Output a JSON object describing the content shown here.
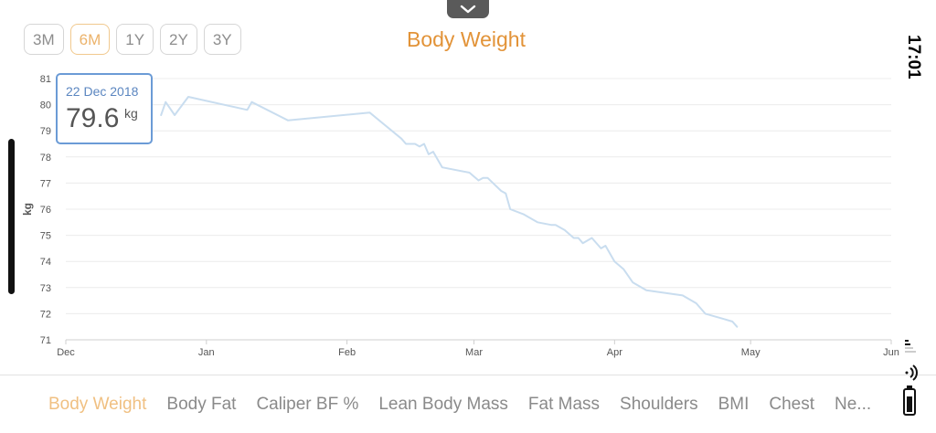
{
  "header": {
    "title": "Body Weight",
    "time_ranges": [
      "3M",
      "6M",
      "1Y",
      "2Y",
      "3Y"
    ],
    "selected_range": "6M"
  },
  "status_bar": {
    "time": "17:01"
  },
  "tooltip": {
    "date": "22 Dec 2018",
    "value": "79.6",
    "unit": "kg"
  },
  "tabs": [
    {
      "label": "Body Weight",
      "active": true
    },
    {
      "label": "Body Fat"
    },
    {
      "label": "Caliper BF %"
    },
    {
      "label": "Lean Body Mass"
    },
    {
      "label": "Fat Mass"
    },
    {
      "label": "Shoulders"
    },
    {
      "label": "BMI"
    },
    {
      "label": "Chest"
    },
    {
      "label": "Ne..."
    }
  ],
  "colors": {
    "accent": "#e29338",
    "line": "#c9ddef",
    "tooltip_border": "#6b9bd6"
  },
  "chart_data": {
    "type": "line",
    "title": "Body Weight",
    "ylabel": "kg",
    "xlabel": "",
    "ylim": [
      71,
      81
    ],
    "yticks": [
      71,
      72,
      73,
      74,
      75,
      76,
      77,
      78,
      79,
      80,
      81
    ],
    "xlim": [
      "2018-12-01",
      "2019-06-01"
    ],
    "xticks": [
      {
        "label": "Dec",
        "date": "2018-12-01"
      },
      {
        "label": "Jan",
        "date": "2019-01-01"
      },
      {
        "label": "Feb",
        "date": "2019-02-01"
      },
      {
        "label": "Mar",
        "date": "2019-03-01"
      },
      {
        "label": "Apr",
        "date": "2019-04-01"
      },
      {
        "label": "May",
        "date": "2019-05-01"
      },
      {
        "label": "Jun",
        "date": "2019-06-01"
      }
    ],
    "grid": true,
    "series": [
      {
        "points": [
          [
            "2018-12-22",
            79.6
          ],
          [
            "2018-12-23",
            80.1
          ],
          [
            "2018-12-25",
            79.6
          ],
          [
            "2018-12-28",
            80.3
          ],
          [
            "2019-01-10",
            79.8
          ],
          [
            "2019-01-11",
            80.1
          ],
          [
            "2019-01-19",
            79.4
          ],
          [
            "2019-02-06",
            79.7
          ],
          [
            "2019-02-13",
            78.7
          ],
          [
            "2019-02-14",
            78.5
          ],
          [
            "2019-02-16",
            78.5
          ],
          [
            "2019-02-17",
            78.4
          ],
          [
            "2019-02-18",
            78.5
          ],
          [
            "2019-02-19",
            78.1
          ],
          [
            "2019-02-20",
            78.2
          ],
          [
            "2019-02-22",
            77.6
          ],
          [
            "2019-02-28",
            77.4
          ],
          [
            "2019-03-02",
            77.1
          ],
          [
            "2019-03-03",
            77.2
          ],
          [
            "2019-03-04",
            77.2
          ],
          [
            "2019-03-07",
            76.7
          ],
          [
            "2019-03-08",
            76.6
          ],
          [
            "2019-03-09",
            76.0
          ],
          [
            "2019-03-12",
            75.8
          ],
          [
            "2019-03-15",
            75.5
          ],
          [
            "2019-03-18",
            75.4
          ],
          [
            "2019-03-19",
            75.4
          ],
          [
            "2019-03-21",
            75.2
          ],
          [
            "2019-03-23",
            74.9
          ],
          [
            "2019-03-24",
            74.9
          ],
          [
            "2019-03-25",
            74.7
          ],
          [
            "2019-03-27",
            74.9
          ],
          [
            "2019-03-29",
            74.5
          ],
          [
            "2019-03-30",
            74.6
          ],
          [
            "2019-04-01",
            74.0
          ],
          [
            "2019-04-03",
            73.7
          ],
          [
            "2019-04-05",
            73.2
          ],
          [
            "2019-04-08",
            72.9
          ],
          [
            "2019-04-16",
            72.7
          ],
          [
            "2019-04-19",
            72.4
          ],
          [
            "2019-04-21",
            72.0
          ],
          [
            "2019-04-25",
            71.8
          ],
          [
            "2019-04-27",
            71.7
          ],
          [
            "2019-04-28",
            71.5
          ]
        ]
      }
    ]
  }
}
